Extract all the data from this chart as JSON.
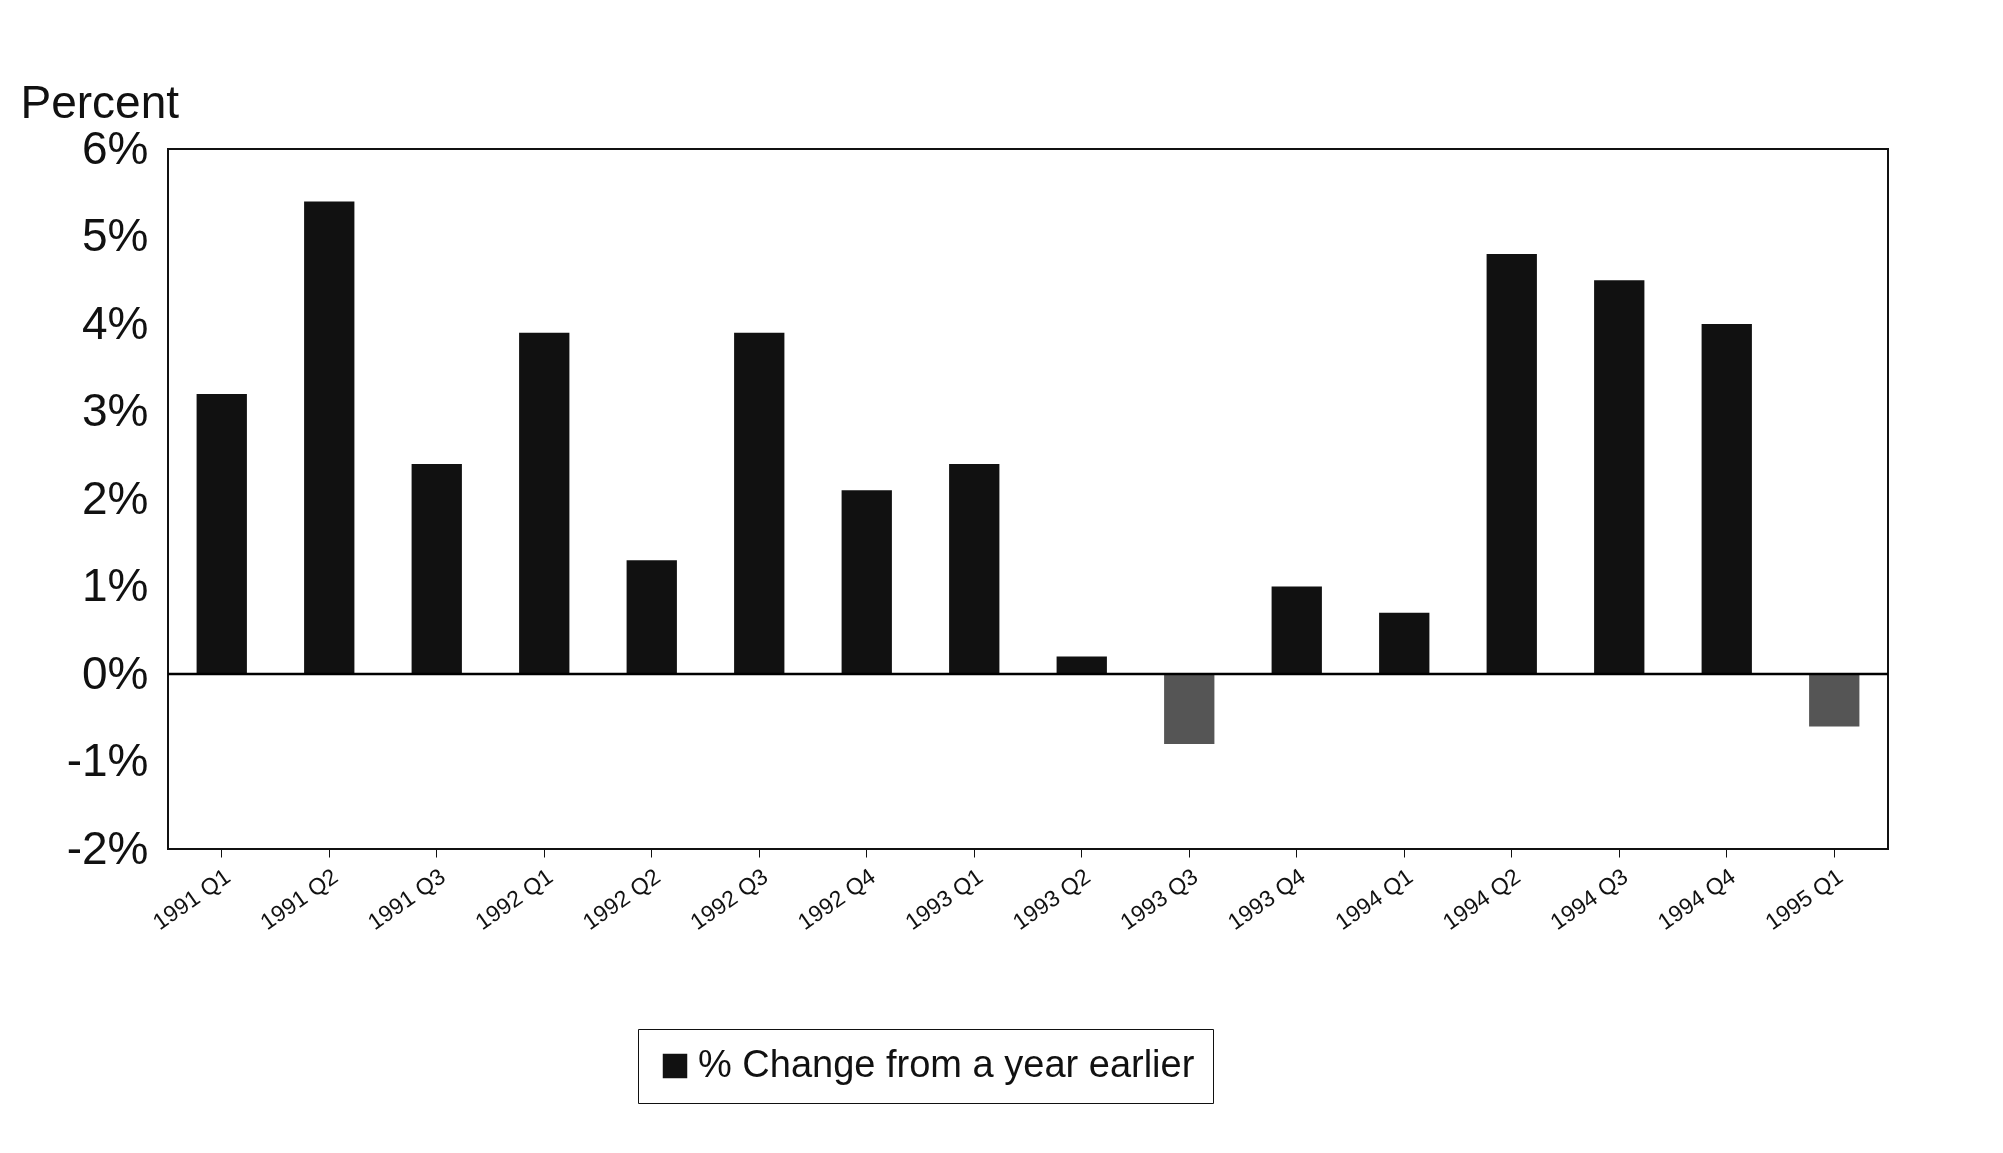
{
  "chart_data": {
    "type": "bar",
    "ylabel": "Percent",
    "categories": [
      "1991 Q1",
      "1991 Q2",
      "1991 Q3",
      "1992 Q1",
      "1992 Q2",
      "1992 Q3",
      "1992 Q4",
      "1993 Q1",
      "1993 Q2",
      "1993 Q3",
      "1993 Q4",
      "1994 Q1",
      "1994 Q2",
      "1994 Q3",
      "1994 Q4",
      "1995 Q1"
    ],
    "series": [
      {
        "name": "% Change from a year earlier",
        "color": "#111111",
        "colors": [
          "#111111",
          "#111111",
          "#111111",
          "#111111",
          "#111111",
          "#111111",
          "#111111",
          "#111111",
          "#111111",
          "#555555",
          "#111111",
          "#111111",
          "#111111",
          "#111111",
          "#111111",
          "#555555"
        ],
        "values": [
          3.2,
          5.4,
          2.4,
          3.9,
          1.3,
          3.9,
          2.1,
          2.4,
          0.2,
          -0.8,
          1.0,
          0.7,
          4.8,
          4.5,
          4.0,
          -0.6
        ]
      }
    ],
    "ylim": [
      -2,
      6
    ],
    "yticks": [
      {
        "value": -2,
        "label": "-2%"
      },
      {
        "value": -1,
        "label": "-1%"
      },
      {
        "value": 0,
        "label": "0%"
      },
      {
        "value": 1,
        "label": "1%"
      },
      {
        "value": 2,
        "label": "2%"
      },
      {
        "value": 3,
        "label": "3%"
      },
      {
        "value": 4,
        "label": "4%"
      },
      {
        "value": 5,
        "label": "5%"
      },
      {
        "value": 6,
        "label": "6%"
      }
    ],
    "ref_lines": [
      {
        "axis": "y",
        "value": 0
      }
    ],
    "grid": false,
    "legend": "bottom"
  }
}
